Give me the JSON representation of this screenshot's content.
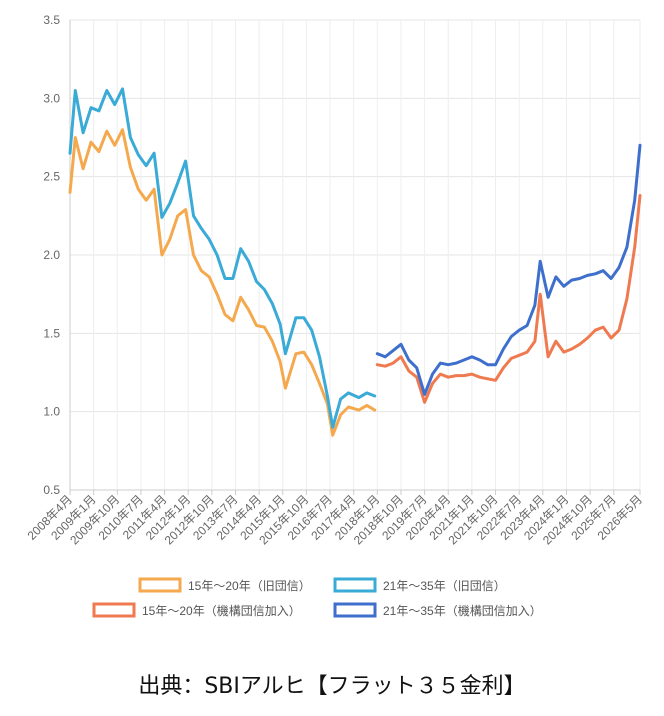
{
  "source_text": "出典：SBIアルヒ【フラット３５金利】",
  "chart_data": {
    "type": "line",
    "ylim": [
      0.5,
      3.5
    ],
    "y_ticks": [
      "0.5",
      "1.0",
      "1.5",
      "2.0",
      "2.5",
      "3.0",
      "3.5"
    ],
    "x_tick_labels": [
      "2008年4月",
      "2009年1月",
      "2009年10月",
      "2010年7月",
      "2011年4月",
      "2012年1月",
      "2012年10月",
      "2013年7月",
      "2014年4月",
      "2015年1月",
      "2015年10月",
      "2016年7月",
      "2017年4月",
      "2018年1月",
      "2018年10月",
      "2019年7月",
      "2020年4月",
      "2021年1月",
      "2021年10月",
      "2022年7月",
      "2023年4月",
      "2024年1月",
      "2024年10月",
      "2025年7月",
      "2026年5月"
    ],
    "grid": true,
    "legend_placement": "bottom",
    "series": [
      {
        "name": "15年〜20年（旧団信）",
        "color": "#f5a94e",
        "points": [
          [
            "2008-04",
            2.4
          ],
          [
            "2008-06",
            2.75
          ],
          [
            "2008-09",
            2.55
          ],
          [
            "2008-12",
            2.72
          ],
          [
            "2009-03",
            2.66
          ],
          [
            "2009-06",
            2.79
          ],
          [
            "2009-09",
            2.7
          ],
          [
            "2009-12",
            2.8
          ],
          [
            "2010-03",
            2.56
          ],
          [
            "2010-06",
            2.42
          ],
          [
            "2010-09",
            2.35
          ],
          [
            "2010-12",
            2.42
          ],
          [
            "2011-03",
            2.0
          ],
          [
            "2011-06",
            2.1
          ],
          [
            "2011-09",
            2.25
          ],
          [
            "2011-12",
            2.29
          ],
          [
            "2012-03",
            2.0
          ],
          [
            "2012-06",
            1.9
          ],
          [
            "2012-09",
            1.86
          ],
          [
            "2012-12",
            1.75
          ],
          [
            "2013-03",
            1.62
          ],
          [
            "2013-06",
            1.58
          ],
          [
            "2013-09",
            1.73
          ],
          [
            "2013-12",
            1.65
          ],
          [
            "2014-03",
            1.55
          ],
          [
            "2014-06",
            1.54
          ],
          [
            "2014-09",
            1.45
          ],
          [
            "2014-12",
            1.32
          ],
          [
            "2015-02",
            1.15
          ],
          [
            "2015-06",
            1.37
          ],
          [
            "2015-09",
            1.38
          ],
          [
            "2015-12",
            1.3
          ],
          [
            "2016-03",
            1.18
          ],
          [
            "2016-06",
            1.05
          ],
          [
            "2016-08",
            0.85
          ],
          [
            "2016-11",
            0.98
          ],
          [
            "2017-02",
            1.03
          ],
          [
            "2017-06",
            1.01
          ],
          [
            "2017-09",
            1.04
          ],
          [
            "2017-12",
            1.01
          ]
        ]
      },
      {
        "name": "21年〜35年（旧団信）",
        "color": "#3aaad6",
        "points": [
          [
            "2008-04",
            2.65
          ],
          [
            "2008-06",
            3.05
          ],
          [
            "2008-09",
            2.78
          ],
          [
            "2008-12",
            2.94
          ],
          [
            "2009-03",
            2.92
          ],
          [
            "2009-06",
            3.05
          ],
          [
            "2009-09",
            2.96
          ],
          [
            "2009-12",
            3.06
          ],
          [
            "2010-03",
            2.75
          ],
          [
            "2010-06",
            2.64
          ],
          [
            "2010-09",
            2.57
          ],
          [
            "2010-12",
            2.65
          ],
          [
            "2011-03",
            2.24
          ],
          [
            "2011-06",
            2.33
          ],
          [
            "2011-09",
            2.46
          ],
          [
            "2011-12",
            2.6
          ],
          [
            "2012-03",
            2.25
          ],
          [
            "2012-06",
            2.17
          ],
          [
            "2012-09",
            2.1
          ],
          [
            "2012-12",
            2.0
          ],
          [
            "2013-03",
            1.85
          ],
          [
            "2013-06",
            1.85
          ],
          [
            "2013-09",
            2.04
          ],
          [
            "2013-12",
            1.96
          ],
          [
            "2014-03",
            1.83
          ],
          [
            "2014-06",
            1.78
          ],
          [
            "2014-09",
            1.69
          ],
          [
            "2014-12",
            1.56
          ],
          [
            "2015-02",
            1.37
          ],
          [
            "2015-06",
            1.6
          ],
          [
            "2015-09",
            1.6
          ],
          [
            "2015-12",
            1.52
          ],
          [
            "2016-03",
            1.35
          ],
          [
            "2016-06",
            1.1
          ],
          [
            "2016-08",
            0.9
          ],
          [
            "2016-11",
            1.08
          ],
          [
            "2017-02",
            1.12
          ],
          [
            "2017-06",
            1.09
          ],
          [
            "2017-09",
            1.12
          ],
          [
            "2017-12",
            1.1
          ]
        ]
      },
      {
        "name": "15年〜20年（機構団信加入）",
        "color": "#ef7a50",
        "points": [
          [
            "2018-01",
            1.3
          ],
          [
            "2018-04",
            1.29
          ],
          [
            "2018-07",
            1.31
          ],
          [
            "2018-10",
            1.35
          ],
          [
            "2019-01",
            1.26
          ],
          [
            "2019-04",
            1.22
          ],
          [
            "2019-07",
            1.06
          ],
          [
            "2019-10",
            1.18
          ],
          [
            "2020-01",
            1.24
          ],
          [
            "2020-04",
            1.22
          ],
          [
            "2020-07",
            1.23
          ],
          [
            "2020-10",
            1.23
          ],
          [
            "2021-01",
            1.24
          ],
          [
            "2021-04",
            1.22
          ],
          [
            "2021-07",
            1.21
          ],
          [
            "2021-10",
            1.2
          ],
          [
            "2022-01",
            1.28
          ],
          [
            "2022-04",
            1.34
          ],
          [
            "2022-07",
            1.36
          ],
          [
            "2022-10",
            1.38
          ],
          [
            "2023-01",
            1.45
          ],
          [
            "2023-03",
            1.75
          ],
          [
            "2023-06",
            1.35
          ],
          [
            "2023-09",
            1.45
          ],
          [
            "2023-12",
            1.38
          ],
          [
            "2024-03",
            1.4
          ],
          [
            "2024-06",
            1.43
          ],
          [
            "2024-09",
            1.47
          ],
          [
            "2024-12",
            1.52
          ],
          [
            "2025-03",
            1.54
          ],
          [
            "2025-06",
            1.47
          ],
          [
            "2025-09",
            1.52
          ],
          [
            "2025-12",
            1.72
          ],
          [
            "2026-03",
            2.05
          ],
          [
            "2026-05",
            2.38
          ]
        ]
      },
      {
        "name": "21年〜35年（機構団信加入）",
        "color": "#3f6fcc",
        "points": [
          [
            "2018-01",
            1.37
          ],
          [
            "2018-04",
            1.35
          ],
          [
            "2018-07",
            1.39
          ],
          [
            "2018-10",
            1.43
          ],
          [
            "2019-01",
            1.33
          ],
          [
            "2019-04",
            1.28
          ],
          [
            "2019-07",
            1.11
          ],
          [
            "2019-10",
            1.24
          ],
          [
            "2020-01",
            1.31
          ],
          [
            "2020-04",
            1.3
          ],
          [
            "2020-07",
            1.31
          ],
          [
            "2020-10",
            1.33
          ],
          [
            "2021-01",
            1.35
          ],
          [
            "2021-04",
            1.33
          ],
          [
            "2021-07",
            1.3
          ],
          [
            "2021-10",
            1.3
          ],
          [
            "2022-01",
            1.4
          ],
          [
            "2022-04",
            1.48
          ],
          [
            "2022-07",
            1.52
          ],
          [
            "2022-10",
            1.55
          ],
          [
            "2023-01",
            1.68
          ],
          [
            "2023-03",
            1.96
          ],
          [
            "2023-06",
            1.73
          ],
          [
            "2023-09",
            1.86
          ],
          [
            "2023-12",
            1.8
          ],
          [
            "2024-03",
            1.84
          ],
          [
            "2024-06",
            1.85
          ],
          [
            "2024-09",
            1.87
          ],
          [
            "2024-12",
            1.88
          ],
          [
            "2025-03",
            1.9
          ],
          [
            "2025-06",
            1.85
          ],
          [
            "2025-09",
            1.92
          ],
          [
            "2025-12",
            2.05
          ],
          [
            "2026-03",
            2.35
          ],
          [
            "2026-05",
            2.7
          ]
        ]
      }
    ]
  }
}
